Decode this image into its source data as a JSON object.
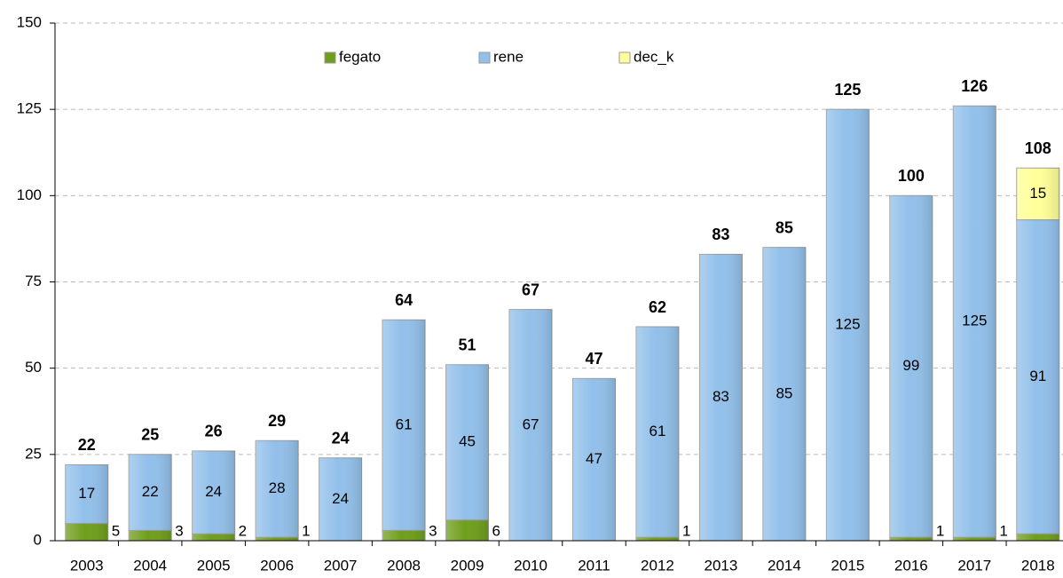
{
  "chart_data": {
    "type": "bar",
    "stacked": true,
    "categories": [
      "2003",
      "2004",
      "2005",
      "2006",
      "2007",
      "2008",
      "2009",
      "2010",
      "2011",
      "2012",
      "2013",
      "2014",
      "2015",
      "2016",
      "2017",
      "2018"
    ],
    "series": [
      {
        "name": "fegato",
        "color": "#6f9e1c",
        "values": [
          5,
          3,
          2,
          1,
          null,
          3,
          6,
          null,
          null,
          1,
          null,
          null,
          null,
          1,
          1,
          2
        ]
      },
      {
        "name": "rene",
        "color": "#92c0ea",
        "values": [
          17,
          22,
          24,
          28,
          24,
          61,
          45,
          67,
          47,
          61,
          83,
          85,
          125,
          99,
          125,
          91
        ]
      },
      {
        "name": "dec_k",
        "color": "#ffff99",
        "values": [
          null,
          null,
          null,
          null,
          null,
          null,
          null,
          null,
          null,
          null,
          null,
          null,
          null,
          null,
          null,
          15
        ]
      }
    ],
    "totals": [
      22,
      25,
      26,
      29,
      24,
      64,
      51,
      67,
      47,
      62,
      83,
      85,
      125,
      100,
      126,
      108
    ],
    "ylim": [
      0,
      150
    ],
    "yticks": [
      0,
      25,
      50,
      75,
      100,
      125,
      150
    ],
    "grid": true
  }
}
